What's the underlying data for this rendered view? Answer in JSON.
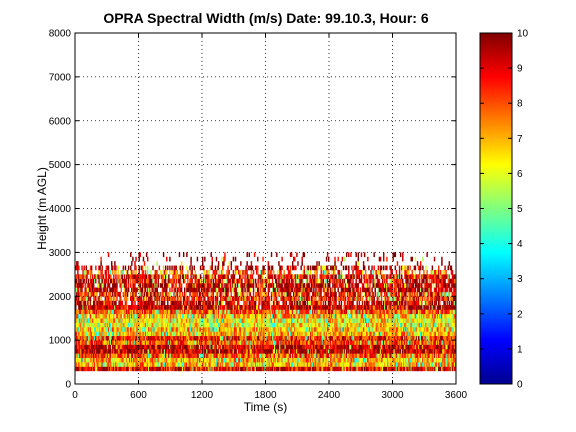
{
  "chart_data": {
    "type": "heatmap",
    "title": "OPRA Spectral Width (m/s)  Date: 99.10.3, Hour: 6",
    "xlabel": "Time (s)",
    "ylabel": "Height (m AGL)",
    "xlim": [
      0,
      3600
    ],
    "ylim": [
      0,
      8000
    ],
    "x_ticks": [
      "0",
      "600",
      "1200",
      "1800",
      "2400",
      "3000",
      "3600"
    ],
    "x_tick_values": [
      0,
      600,
      1200,
      1800,
      2400,
      3000,
      3600
    ],
    "y_ticks": [
      "0",
      "1000",
      "2000",
      "3000",
      "4000",
      "5000",
      "6000",
      "7000",
      "8000"
    ],
    "y_tick_values": [
      0,
      1000,
      2000,
      3000,
      4000,
      5000,
      6000,
      7000,
      8000
    ],
    "grid": true,
    "grid_style": "dotted",
    "colorscale": "jet",
    "colorbar": {
      "range": [
        0,
        10
      ],
      "ticks": [
        "0",
        "1",
        "2",
        "3",
        "4",
        "5",
        "6",
        "7",
        "8",
        "9",
        "10"
      ],
      "tick_values": [
        0,
        1,
        2,
        3,
        4,
        5,
        6,
        7,
        8,
        9,
        10
      ]
    },
    "range_gates_m": [
      300,
      3000
    ],
    "gate_spacing_m": 100,
    "time_step_s": 10,
    "approx_layers": [
      {
        "height_range": [
          300,
          400
        ],
        "value": 9.0
      },
      {
        "height_range": [
          400,
          600
        ],
        "value": 7.0
      },
      {
        "height_range": [
          600,
          700
        ],
        "value": 8.0
      },
      {
        "height_range": [
          700,
          900
        ],
        "value": 9.5
      },
      {
        "height_range": [
          900,
          1000
        ],
        "value": 8.0
      },
      {
        "height_range": [
          1000,
          1100
        ],
        "value": 8.5
      },
      {
        "height_range": [
          1100,
          1300
        ],
        "value": 7.0
      },
      {
        "height_range": [
          1300,
          1500
        ],
        "value": 6.5
      },
      {
        "height_range": [
          1500,
          1600
        ],
        "value": 7.0
      },
      {
        "height_range": [
          1600,
          1700
        ],
        "value": 8.0
      },
      {
        "height_range": [
          1700,
          1900
        ],
        "value": 9.5
      },
      {
        "height_range": [
          1900,
          2100
        ],
        "value": 8.5
      },
      {
        "height_range": [
          2100,
          2300
        ],
        "value": 9.5
      },
      {
        "height_range": [
          2300,
          2500
        ],
        "value": 9.0
      },
      {
        "height_range": [
          2500,
          2600
        ],
        "value": 8.0
      },
      {
        "height_range": [
          2600,
          3000
        ],
        "value": 9.8
      }
    ],
    "colors": {
      "grid": "#000000",
      "axes": "#000000",
      "background": "#ffffff"
    }
  }
}
